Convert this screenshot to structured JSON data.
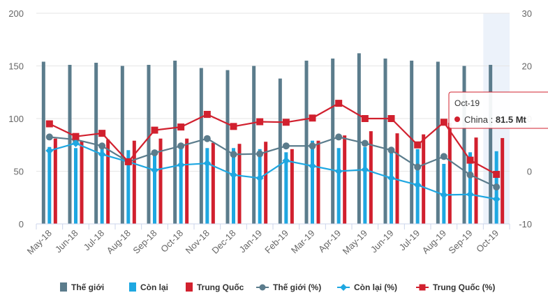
{
  "chart_data": {
    "type": "bar",
    "categories": [
      "May-18",
      "Jun-18",
      "Jul-18",
      "Aug-18",
      "Sep-18",
      "Oct-18",
      "Nov-18",
      "Dec-18",
      "Jan-19",
      "Feb-19",
      "Mar-19",
      "Apr-19",
      "May-19",
      "Jun-19",
      "Jul-19",
      "Aug-19",
      "Sep-19",
      "Oct-19"
    ],
    "left_axis": {
      "min": 0,
      "max": 200,
      "ticks": [
        "0",
        "50",
        "100",
        "150",
        "200"
      ]
    },
    "right_axis": {
      "min": -10,
      "max": 30,
      "ticks": [
        "-10",
        "0",
        "10",
        "20",
        "30"
      ]
    },
    "series": [
      {
        "name": "Thế giới",
        "kind": "bar",
        "axis": "left",
        "color": "#5b7c8c",
        "values": [
          154,
          151,
          153,
          150,
          151,
          155,
          148,
          146,
          150,
          138,
          155,
          157,
          162,
          157,
          155,
          154,
          150,
          151
        ]
      },
      {
        "name": "Còn lại",
        "kind": "bar",
        "axis": "left",
        "color": "#1ea7e1",
        "values": [
          73,
          72,
          72,
          70,
          70,
          74,
          72,
          72,
          71,
          68,
          79,
          72,
          73,
          72,
          71,
          57,
          68,
          69
        ]
      },
      {
        "name": "Trung Quốc",
        "kind": "bar",
        "axis": "left",
        "color": "#d1202e",
        "values": [
          81,
          79,
          80,
          79,
          81,
          81,
          77,
          76,
          78,
          71,
          79,
          84,
          88,
          86,
          85,
          96,
          82,
          81.5
        ]
      },
      {
        "name": "Thế giới (%)",
        "kind": "line",
        "axis": "right",
        "color": "#5b7c8c",
        "marker": "circle",
        "values": [
          6.5,
          6,
          4.8,
          1.8,
          3.5,
          4.8,
          6.2,
          3.2,
          3.3,
          4.8,
          4.8,
          6.5,
          5.3,
          4,
          0.8,
          2.8,
          -0.7,
          -3
        ]
      },
      {
        "name": "Còn lại (%)",
        "kind": "line",
        "axis": "right",
        "color": "#1ea7e1",
        "marker": "diamond",
        "values": [
          3.9,
          5.3,
          3.2,
          1.8,
          0.2,
          1.2,
          1.5,
          -0.7,
          -1.3,
          2,
          1,
          0,
          0.3,
          -1.3,
          -2.6,
          -4.5,
          -4.4,
          -5.3
        ]
      },
      {
        "name": "Trung Quốc (%)",
        "kind": "line",
        "axis": "right",
        "color": "#d1202e",
        "marker": "square",
        "values": [
          9,
          6.6,
          7.2,
          1.8,
          7.8,
          8.4,
          10.8,
          8.5,
          9.4,
          9.3,
          10.1,
          12.9,
          10,
          10,
          5,
          9.3,
          2.1,
          -0.6
        ]
      }
    ],
    "highlight_index": 17,
    "legend": {
      "placement": "bottom"
    },
    "tooltip": {
      "title": "Oct-19",
      "label": "China",
      "sep": " : ",
      "value": "81.5 Mt"
    }
  }
}
